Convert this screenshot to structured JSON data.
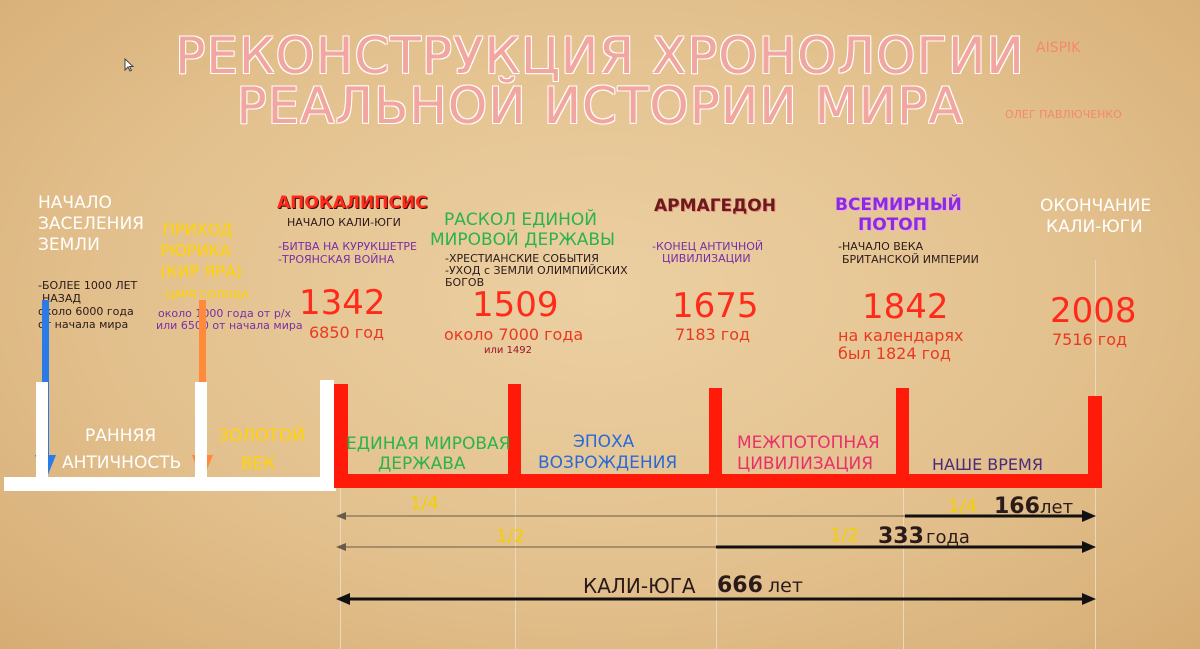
{
  "title": {
    "line1": "РЕКОНСТРУКЦИЯ ХРОНОЛОГИИ",
    "line2": "РЕАЛЬНОЙ ИСТОРИИ МИРА"
  },
  "credits": {
    "brand": "AISPIK",
    "author": "ОЛЕГ ПАВЛЮЧЕНКО"
  },
  "start": {
    "heading": [
      "НАЧАЛО",
      "ЗАСЕЛЕНИЯ",
      "ЗЕМЛИ"
    ],
    "notes": [
      "-БОЛЕЕ 1000 ЛЕТ",
      "НАЗАД",
      "около 6000 года",
      "от начала мира"
    ]
  },
  "rurik": {
    "heading": [
      "ПРИХОД",
      "РЮРИКА",
      "(КИР ЯРА)"
    ],
    "sub": "-ЦАРЯ СОЛНЦА",
    "notes": [
      "около 1000 года от р/х",
      "или 6500 от начала мира"
    ]
  },
  "events": [
    {
      "title": "АПОКАЛИПСИС",
      "subtitle": "НАЧАЛО КАЛИ-ЮГИ",
      "notes": [
        "-БИТВА НА КУРУКШЕТРЕ",
        "-ТРОЯНСКАЯ ВОЙНА"
      ],
      "year": "1342",
      "alt": "6850 год"
    },
    {
      "title": "РАСКОЛ ЕДИНОЙ",
      "title2": "МИРОВОЙ ДЕРЖАВЫ",
      "notes": [
        "-ХРЕСТИАНСКИЕ СОБЫТИЯ",
        "-УХОД с ЗЕМЛИ ОЛИМПИЙСКИХ",
        "БОГОВ"
      ],
      "year": "1509",
      "alt": "около 7000 года",
      "alt2": "или 1492"
    },
    {
      "title": "АРМАГЕДОН",
      "notes": [
        "-КОНЕЦ АНТИЧНОЙ",
        "ЦИВИЛИЗАЦИИ"
      ],
      "year": "1675",
      "alt": "7183 год"
    },
    {
      "title": "ВСЕМИРНЫЙ",
      "title2": "ПОТОП",
      "notes": [
        "-НАЧАЛО ВЕКА",
        "БРИТАНСКОЙ ИМПЕРИИ"
      ],
      "year": "1842",
      "alt": "на календарях",
      "alt2": "был 1824 год"
    },
    {
      "title": "ОКОНЧАНИЕ",
      "title2": "КАЛИ-ЮГИ",
      "year": "2008",
      "alt": "7516 год"
    }
  ],
  "eras": {
    "early": [
      "РАННЯЯ",
      "АНТИЧНОСТЬ"
    ],
    "golden": [
      "ЗОЛОТОЙ",
      "ВЕК"
    ],
    "united": [
      "ЕДИНАЯ МИРОВАЯ",
      "ДЕРЖАВА"
    ],
    "renaissance": [
      "ЭПОХА",
      "ВОЗРОЖДЕНИЯ"
    ],
    "interflood": [
      "МЕЖПОТОПНАЯ",
      "ЦИВИЛИЗАЦИЯ"
    ],
    "ourtime": "НАШЕ ВРЕМЯ"
  },
  "spans": {
    "q_left": "1/4",
    "q_right": "1/4",
    "q_right_num": "166",
    "q_right_unit": "лет",
    "h_left": "1/2",
    "h_right": "1/2",
    "h_right_num": "333",
    "h_right_unit": "года",
    "kali_label": "КАЛИ-ЮГА",
    "kali_num": "666",
    "kali_unit": "лет"
  },
  "colors": {
    "bar": "#ff1a0a",
    "white_bar": "#ffffff",
    "apocalypse": "#ff2a1a",
    "split": "#2bb34a",
    "armageddon": "#6a1a1a",
    "flood": "#8a2be2",
    "renaissance": "#2a6ad8",
    "interflood": "#e8306a",
    "ourtime": "#4a2a7a",
    "golden": "#ffd400",
    "arrow_blue": "#2a7ae8",
    "arrow_orange": "#ff8a3a"
  }
}
